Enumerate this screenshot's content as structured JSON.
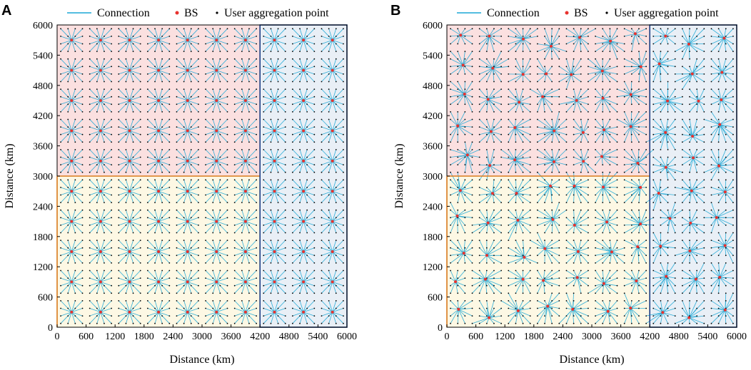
{
  "figure": {
    "panels": [
      "A",
      "B"
    ]
  },
  "legend": {
    "connection": "Connection",
    "bs": "BS",
    "user": "User aggregation point"
  },
  "colors": {
    "connection": "#1aa7d6",
    "bs": "#e8322e",
    "user": "#000000",
    "region_top": "#fbe0e0",
    "region_bottom": "#fdf8e4",
    "region_right": "#e9eff6",
    "boundary_orange": "#d97a1c",
    "boundary_blue": "#1c3f86"
  },
  "chart_data": [
    {
      "panel": "A",
      "type": "scatter",
      "title": "",
      "xlabel": "Distance (km)",
      "ylabel": "Distance (km)",
      "xlim": [
        0,
        6000
      ],
      "ylim": [
        0,
        6000
      ],
      "xticks": [
        "0",
        "600",
        "1200",
        "1800",
        "2400",
        "3000",
        "3600",
        "4200",
        "4800",
        "5400",
        "6000"
      ],
      "yticks": [
        "0",
        "600",
        "1200",
        "1800",
        "2400",
        "3000",
        "3600",
        "4200",
        "4800",
        "5400",
        "6000"
      ],
      "regions": [
        {
          "name": "upper-left",
          "x": [
            0,
            4200
          ],
          "y": [
            3000,
            6000
          ],
          "color": "#fbe0e0"
        },
        {
          "name": "lower-left",
          "x": [
            0,
            4200
          ],
          "y": [
            0,
            3000
          ],
          "color": "#fdf8e4"
        },
        {
          "name": "right",
          "x": [
            4200,
            6000
          ],
          "y": [
            0,
            6000
          ],
          "color": "#e9eff6"
        }
      ],
      "bs_layout": "regular",
      "bs_x": [
        300,
        900,
        1500,
        2100,
        2700,
        3300,
        3900,
        4500,
        5100,
        5700
      ],
      "bs_y": [
        300,
        900,
        1500,
        2100,
        2700,
        3300,
        3900,
        4500,
        5100,
        5700
      ],
      "user_grid_spacing": 150
    },
    {
      "panel": "B",
      "type": "scatter",
      "title": "",
      "xlabel": "Distance (km)",
      "ylabel": "Distance (km)",
      "xlim": [
        0,
        6000
      ],
      "ylim": [
        0,
        6000
      ],
      "xticks": [
        "0",
        "600",
        "1200",
        "1800",
        "2400",
        "3000",
        "3600",
        "4200",
        "4800",
        "5400",
        "6000"
      ],
      "yticks": [
        "0",
        "600",
        "1200",
        "1800",
        "2400",
        "3000",
        "3600",
        "4200",
        "4800",
        "5400",
        "6000"
      ],
      "regions": [
        {
          "name": "upper-left",
          "x": [
            0,
            4200
          ],
          "y": [
            3000,
            6000
          ],
          "color": "#fbe0e0"
        },
        {
          "name": "lower-left",
          "x": [
            0,
            4200
          ],
          "y": [
            0,
            3000
          ],
          "color": "#fdf8e4"
        },
        {
          "name": "right",
          "x": [
            4200,
            6000
          ],
          "y": [
            0,
            6000
          ],
          "color": "#e9eff6"
        }
      ],
      "bs_layout": "optimized",
      "bs_x": [
        300,
        900,
        1500,
        2100,
        2700,
        3300,
        3900,
        4500,
        5100,
        5700
      ],
      "bs_y": [
        300,
        900,
        1500,
        2100,
        2700,
        3300,
        3900,
        4500,
        5100,
        5700
      ],
      "user_grid_spacing": 150
    }
  ]
}
